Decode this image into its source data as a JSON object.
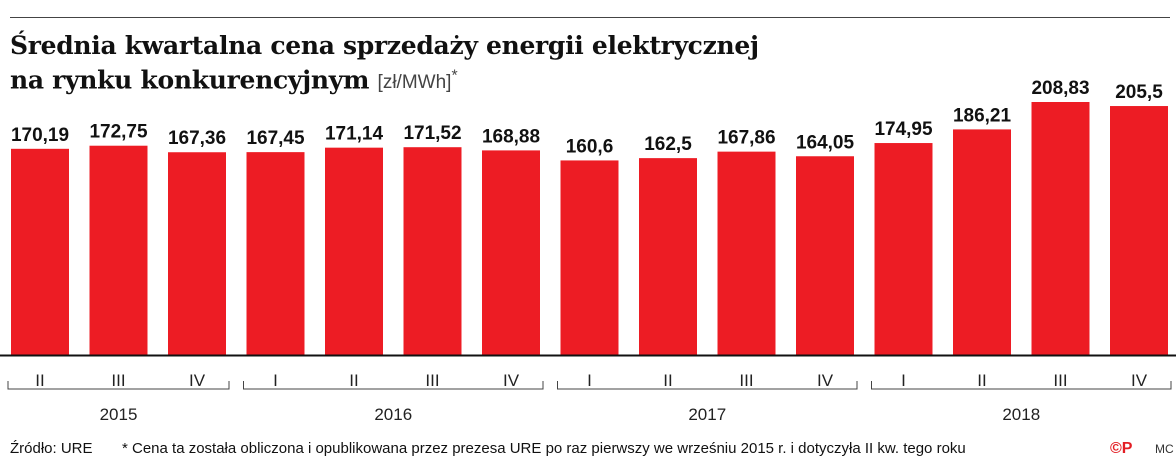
{
  "chart_data": {
    "type": "bar",
    "title_line1": "Średnia kwartalna cena sprzedaży energii elektrycznej",
    "title_line2": "na rynku konkurencyjnym",
    "unit": "[zł/MWh]",
    "unit_mark": "*",
    "categories": [
      "II",
      "III",
      "IV",
      "I",
      "II",
      "III",
      "IV",
      "I",
      "II",
      "III",
      "IV",
      "I",
      "II",
      "III",
      "IV"
    ],
    "value_labels": [
      "170,19",
      "172,75",
      "167,36",
      "167,45",
      "171,14",
      "171,52",
      "168,88",
      "160,6",
      "162,5",
      "167,86",
      "164,05",
      "174,95",
      "186,21",
      "208,83",
      "205,5"
    ],
    "values": [
      170.19,
      172.75,
      167.36,
      167.45,
      171.14,
      171.52,
      168.88,
      160.6,
      162.5,
      167.86,
      164.05,
      174.95,
      186.21,
      208.83,
      205.5
    ],
    "years": [
      {
        "label": "2015",
        "first": 0,
        "last": 2
      },
      {
        "label": "2016",
        "first": 3,
        "last": 6
      },
      {
        "label": "2017",
        "first": 7,
        "last": 10
      },
      {
        "label": "2018",
        "first": 11,
        "last": 14
      }
    ],
    "ylim": [
      0,
      208.83
    ],
    "bar_color": "#ed1c24",
    "grid": false
  },
  "footer": {
    "source": "Źródło: URE",
    "footnote": "* Cena ta została obliczona i opublikowana przez prezesa URE po raz pierwszy we wrześniu 2015 r. i dotyczyła II kw. tego roku",
    "logo": "©P",
    "initials": "MC"
  }
}
